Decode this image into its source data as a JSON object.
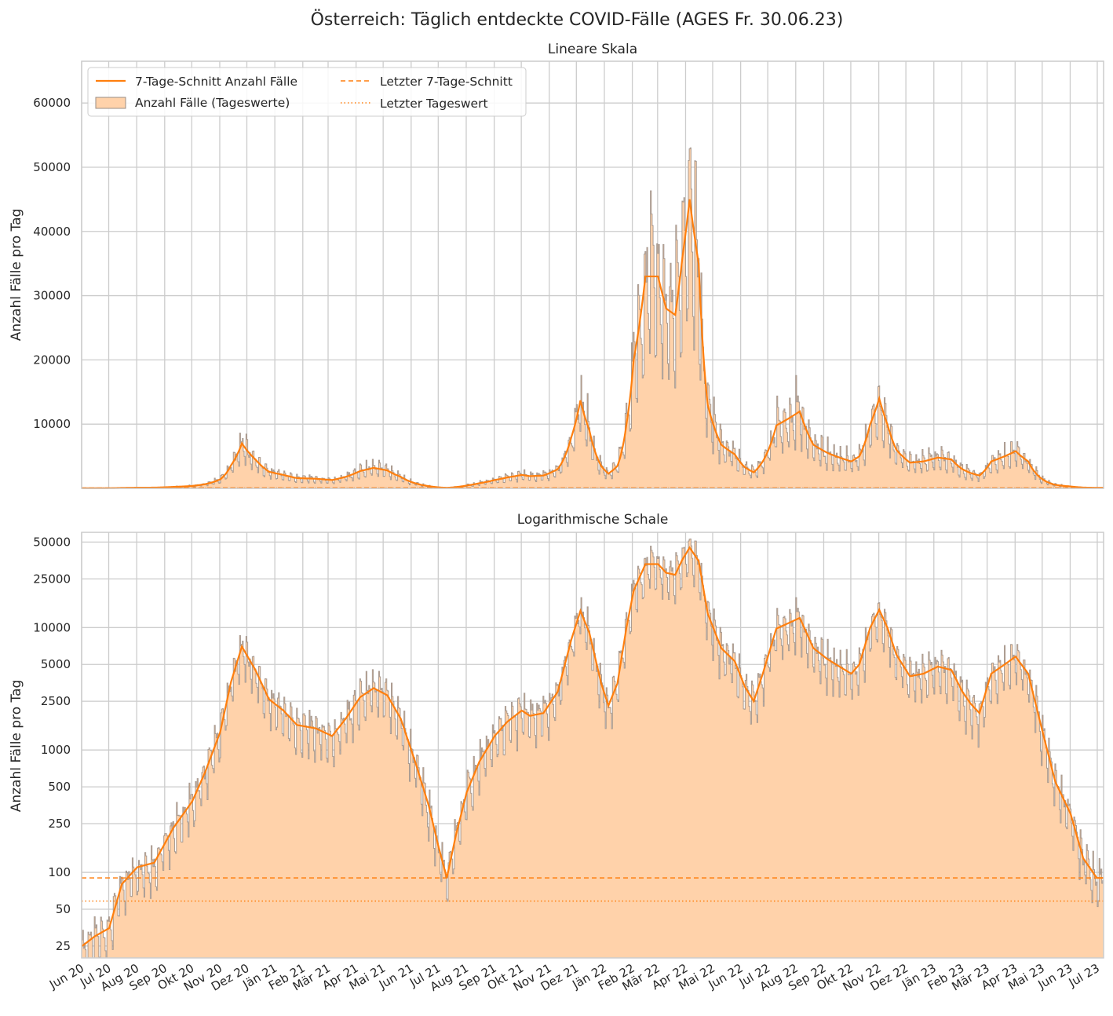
{
  "figure": {
    "title": "Österreich: Täglich entdeckte COVID-Fälle (AGES Fr. 30.06.23)"
  },
  "colors": {
    "line": "#ff7f0e",
    "fill": "#ffd2aa",
    "bar_edge": "#9a8d85",
    "grid": "#cccccc",
    "axes_edge": "#cccccc"
  },
  "chart_data": [
    {
      "type": "area",
      "title": "Lineare Skala",
      "ylabel": "Anzahl Fälle pro Tag",
      "xlabel": "",
      "yscale": "linear",
      "ylim": [
        0,
        66500
      ],
      "yticks": [
        10000,
        20000,
        30000,
        40000,
        50000,
        60000
      ],
      "ytick_labels": [
        "10000",
        "20000",
        "30000",
        "40000",
        "50000",
        "60000"
      ],
      "show_xticklabels": false,
      "grid": true,
      "legend": {
        "placement": "upper-left",
        "columns": 2,
        "entries": [
          {
            "label": "7-Tage-Schnitt Anzahl Fälle",
            "style": "line"
          },
          {
            "label": "Anzahl Fälle (Tageswerte)",
            "style": "patch"
          },
          {
            "label": "Letzter 7-Tage-Schnitt",
            "style": "dashed"
          },
          {
            "label": "Letzter Tageswert",
            "style": "dotted"
          }
        ]
      }
    },
    {
      "type": "area",
      "title": "Logarithmische Schale",
      "ylabel": "Anzahl Fälle pro Tag",
      "xlabel": "",
      "yscale": "log",
      "ylim": [
        20,
        60000
      ],
      "yticks": [
        25,
        50,
        100,
        250,
        500,
        1000,
        2500,
        5000,
        10000,
        25000,
        50000
      ],
      "ytick_labels": [
        "25",
        "50",
        "100",
        "250",
        "500",
        "1000",
        "2500",
        "5000",
        "10000",
        "25000",
        "50000"
      ],
      "show_xticklabels": true,
      "grid": true
    }
  ],
  "series_info": {
    "x_start": "2020-06-01",
    "x_end": "2023-07-08",
    "month_ticks": [
      "Jun 20",
      "Jul 20",
      "Aug 20",
      "Sep 20",
      "Okt 20",
      "Nov 20",
      "Dez 20",
      "Jän 21",
      "Feb 21",
      "Mär 21",
      "Apr 21",
      "Mai 21",
      "Jun 21",
      "Jul 21",
      "Aug 21",
      "Sep 21",
      "Okt 21",
      "Nov 21",
      "Dez 21",
      "Jän 22",
      "Feb 22",
      "Mär 22",
      "Apr 22",
      "Mai 22",
      "Jun 22",
      "Jul 22",
      "Aug 22",
      "Sep 22",
      "Okt 22",
      "Nov 22",
      "Dez 22",
      "Jän 23",
      "Feb 23",
      "Mär 23",
      "Apr 23",
      "Mai 23",
      "Jun 23",
      "Jul 23"
    ],
    "avg7_anchor_dates": [
      "2020-06-01",
      "2020-06-15",
      "2020-07-01",
      "2020-07-15",
      "2020-08-01",
      "2020-08-20",
      "2020-09-10",
      "2020-10-01",
      "2020-10-15",
      "2020-11-01",
      "2020-11-13",
      "2020-11-25",
      "2020-12-10",
      "2020-12-25",
      "2021-01-10",
      "2021-01-25",
      "2021-02-15",
      "2021-03-05",
      "2021-03-20",
      "2021-04-05",
      "2021-04-20",
      "2021-05-05",
      "2021-05-20",
      "2021-06-05",
      "2021-06-20",
      "2021-07-01",
      "2021-07-10",
      "2021-07-20",
      "2021-08-01",
      "2021-08-15",
      "2021-09-01",
      "2021-09-15",
      "2021-10-01",
      "2021-10-10",
      "2021-10-25",
      "2021-11-10",
      "2021-11-25",
      "2021-12-05",
      "2021-12-15",
      "2021-12-28",
      "2022-01-05",
      "2022-01-15",
      "2022-01-25",
      "2022-02-02",
      "2022-02-15",
      "2022-03-01",
      "2022-03-10",
      "2022-03-20",
      "2022-03-28",
      "2022-04-05",
      "2022-04-15",
      "2022-04-25",
      "2022-05-10",
      "2022-05-25",
      "2022-06-05",
      "2022-06-15",
      "2022-06-25",
      "2022-07-10",
      "2022-07-25",
      "2022-08-05",
      "2022-08-20",
      "2022-09-05",
      "2022-09-20",
      "2022-10-01",
      "2022-10-10",
      "2022-10-22",
      "2022-11-01",
      "2022-11-10",
      "2022-11-20",
      "2022-12-05",
      "2022-12-20",
      "2023-01-05",
      "2023-01-20",
      "2023-02-01",
      "2023-02-10",
      "2023-02-20",
      "2023-03-05",
      "2023-03-20",
      "2023-04-01",
      "2023-04-15",
      "2023-05-01",
      "2023-05-15",
      "2023-06-01",
      "2023-06-15",
      "2023-06-30"
    ],
    "avg7_anchor_values": [
      25,
      30,
      35,
      80,
      110,
      120,
      230,
      380,
      650,
      1400,
      3600,
      7000,
      4500,
      2600,
      2100,
      1600,
      1500,
      1300,
      1800,
      2700,
      3200,
      2800,
      1800,
      800,
      350,
      160,
      90,
      200,
      450,
      800,
      1300,
      1700,
      2100,
      1900,
      2000,
      3000,
      8000,
      13700,
      9000,
      3500,
      2300,
      3500,
      10000,
      20000,
      33000,
      33000,
      28000,
      27000,
      36000,
      45000,
      35000,
      13000,
      6800,
      5300,
      3300,
      2500,
      4200,
      9800,
      11000,
      12000,
      6800,
      5500,
      4700,
      4200,
      5000,
      10000,
      14000,
      10000,
      6000,
      4000,
      4200,
      4800,
      4500,
      3000,
      2400,
      2000,
      4200,
      5000,
      5800,
      4200,
      1400,
      550,
      300,
      130,
      90
    ]
  }
}
